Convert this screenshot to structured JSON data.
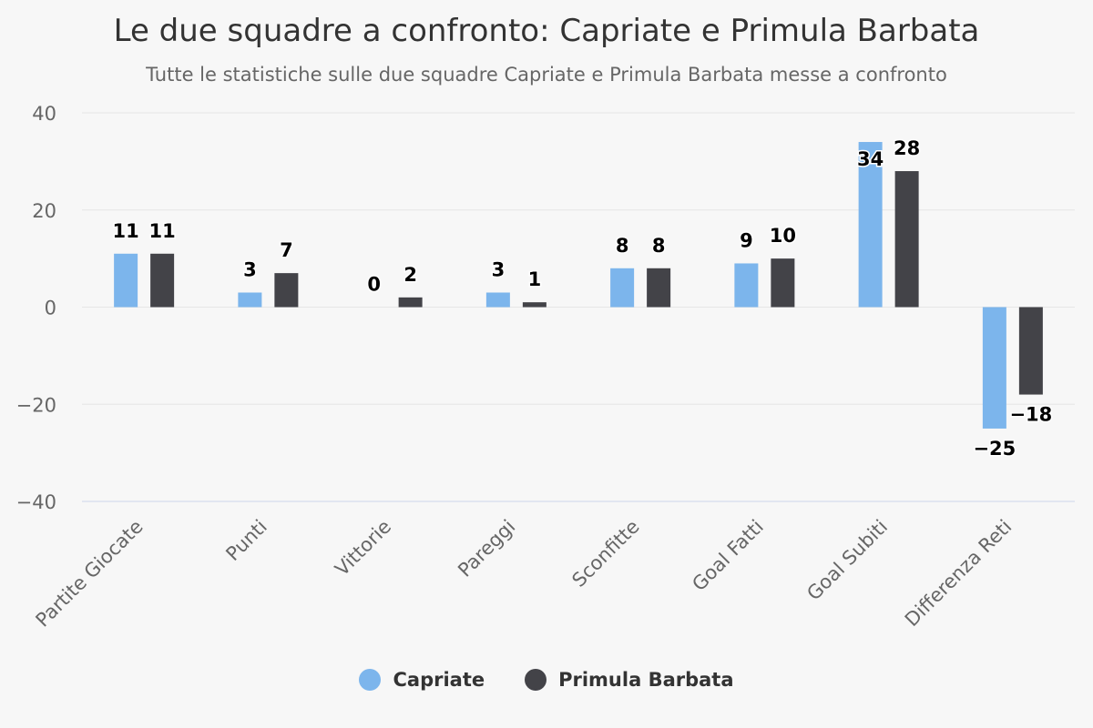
{
  "chart_data": {
    "type": "bar",
    "title": "Le due squadre a confronto: Capriate e Primula Barbata",
    "subtitle": "Tutte le statistiche sulle due squadre Capriate e Primula Barbata messe a confronto",
    "categories": [
      "Partite Giocate",
      "Punti",
      "Vittorie",
      "Pareggi",
      "Sconfitte",
      "Goal Fatti",
      "Goal Subiti",
      "Differenza Reti"
    ],
    "series": [
      {
        "name": "Capriate",
        "values": [
          11,
          3,
          0,
          3,
          8,
          9,
          34,
          -25
        ],
        "color": "#7cb5ec"
      },
      {
        "name": "Primula Barbata",
        "values": [
          11,
          7,
          2,
          1,
          8,
          10,
          28,
          -18
        ],
        "color": "#434348"
      }
    ],
    "ylim": [
      -40,
      40
    ],
    "yticks": [
      40,
      20,
      0,
      -20,
      -40
    ],
    "grid": true,
    "legend_position": "bottom-center",
    "data_labels": true
  }
}
